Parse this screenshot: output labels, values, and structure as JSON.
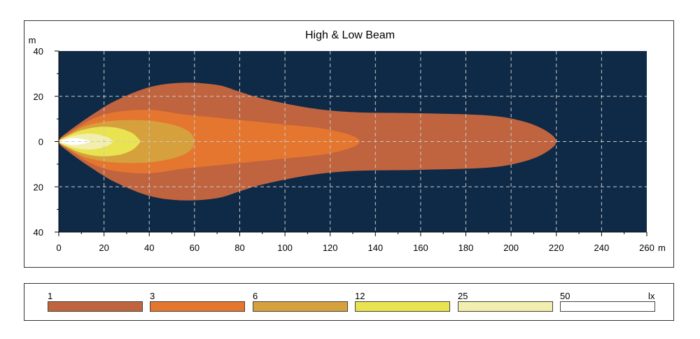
{
  "chart_data": {
    "type": "area",
    "title": "High & Low Beam",
    "x_unit": "m",
    "y_unit": "m",
    "xlim": [
      0,
      260
    ],
    "ylim": [
      -40,
      40
    ],
    "x_ticks": [
      0,
      20,
      40,
      60,
      80,
      100,
      120,
      140,
      160,
      180,
      200,
      220,
      240,
      260
    ],
    "x_tick_labels": [
      "0",
      "20",
      "40",
      "60",
      "80",
      "100",
      "120",
      "140",
      "160",
      "180",
      "200",
      "220",
      "240",
      "260"
    ],
    "y_ticks": [
      40,
      20,
      0,
      -20,
      -40
    ],
    "y_tick_labels": [
      "40",
      "20",
      "0",
      "20",
      "40"
    ],
    "grid": true,
    "background_color": "#0f2a47",
    "series": [
      {
        "name": "1",
        "color": "#c0643f",
        "upper": [
          [
            0,
            0
          ],
          [
            5,
            5
          ],
          [
            15,
            12
          ],
          [
            25,
            18
          ],
          [
            40,
            24
          ],
          [
            55,
            26
          ],
          [
            70,
            25
          ],
          [
            80,
            22
          ],
          [
            90,
            19
          ],
          [
            110,
            15
          ],
          [
            130,
            13
          ],
          [
            160,
            12.5
          ],
          [
            190,
            11.5
          ],
          [
            205,
            9
          ],
          [
            215,
            5
          ],
          [
            220,
            0
          ]
        ]
      },
      {
        "name": "3",
        "color": "#e5762f",
        "upper": [
          [
            0,
            0
          ],
          [
            5,
            4
          ],
          [
            15,
            10
          ],
          [
            25,
            13
          ],
          [
            40,
            14
          ],
          [
            55,
            12
          ],
          [
            70,
            10.5
          ],
          [
            85,
            9
          ],
          [
            100,
            7.5
          ],
          [
            115,
            6
          ],
          [
            125,
            4
          ],
          [
            131,
            2
          ],
          [
            133,
            0
          ]
        ]
      },
      {
        "name": "6",
        "color": "#d6a03c",
        "upper": [
          [
            0,
            0
          ],
          [
            5,
            3.5
          ],
          [
            12,
            7
          ],
          [
            22,
            9
          ],
          [
            32,
            9.5
          ],
          [
            42,
            9
          ],
          [
            52,
            7
          ],
          [
            58,
            4
          ],
          [
            60,
            0
          ]
        ]
      },
      {
        "name": "12",
        "color": "#e9e352",
        "upper": [
          [
            0,
            0
          ],
          [
            4,
            2.5
          ],
          [
            10,
            5
          ],
          [
            18,
            6.5
          ],
          [
            26,
            6
          ],
          [
            32,
            4
          ],
          [
            35,
            1.5
          ],
          [
            36,
            0
          ]
        ]
      },
      {
        "name": "25",
        "color": "#f2eeae",
        "upper": [
          [
            0,
            0
          ],
          [
            3,
            1.5
          ],
          [
            8,
            3
          ],
          [
            14,
            3.5
          ],
          [
            20,
            2.5
          ],
          [
            23,
            1
          ],
          [
            24,
            0
          ]
        ]
      },
      {
        "name": "50",
        "color": "#ffffff",
        "upper": [
          [
            0,
            0
          ],
          [
            3,
            1
          ],
          [
            7,
            1.5
          ],
          [
            11,
            1
          ],
          [
            13,
            0.4
          ],
          [
            14,
            0
          ]
        ]
      }
    ]
  },
  "legend": {
    "unit": "lx",
    "items": [
      {
        "label": "1",
        "color": "#c0643f"
      },
      {
        "label": "3",
        "color": "#e5762f"
      },
      {
        "label": "6",
        "color": "#d6a03c"
      },
      {
        "label": "12",
        "color": "#e9e352"
      },
      {
        "label": "25",
        "color": "#f2eeae"
      },
      {
        "label": "50",
        "color": "#ffffff"
      }
    ]
  }
}
